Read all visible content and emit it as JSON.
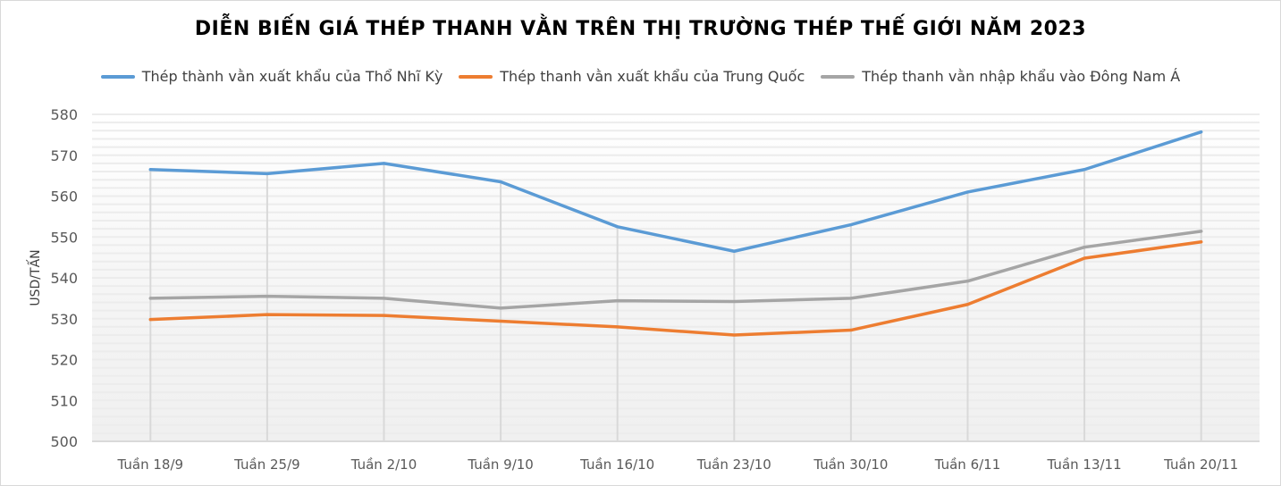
{
  "chart_data": {
    "type": "line",
    "title": "DIỄN BIẾN GIÁ THÉP THANH VẰN TRÊN THỊ TRƯỜNG THÉP THẾ GIỚI NĂM 2023",
    "xlabel": "",
    "ylabel": "USD/TẤN",
    "ylim": [
      500,
      580
    ],
    "yticks": [
      500,
      510,
      520,
      530,
      540,
      550,
      560,
      570,
      580
    ],
    "legend_position": "top",
    "categories": [
      "Tuần 18/9",
      "Tuần 25/9",
      "Tuần 2/10",
      "Tuần 9/10",
      "Tuần 16/10",
      "Tuần 23/10",
      "Tuần 30/10",
      "Tuần 6/11",
      "Tuần 13/11",
      "Tuần 20/11"
    ],
    "series": [
      {
        "name": "Thép thành vằn xuất khẩu của Thổ Nhĩ Kỳ",
        "color": "#5b9bd5",
        "values": [
          566.5,
          565.5,
          568,
          563.5,
          552.5,
          546.5,
          553,
          561,
          566.5,
          575.7
        ]
      },
      {
        "name": "Thép thanh vằn xuất khẩu của Trung Quốc",
        "color": "#ed7d31",
        "values": [
          529.8,
          531,
          530.8,
          529.4,
          528,
          526,
          527.2,
          533.5,
          544.8,
          548.8
        ]
      },
      {
        "name": "Thép thanh vằn nhập khẩu vào Đông Nam Á",
        "color": "#a5a5a5",
        "values": [
          535,
          535.5,
          535,
          532.6,
          534.4,
          534.2,
          535,
          539.2,
          547.5,
          551.4
        ]
      }
    ]
  }
}
